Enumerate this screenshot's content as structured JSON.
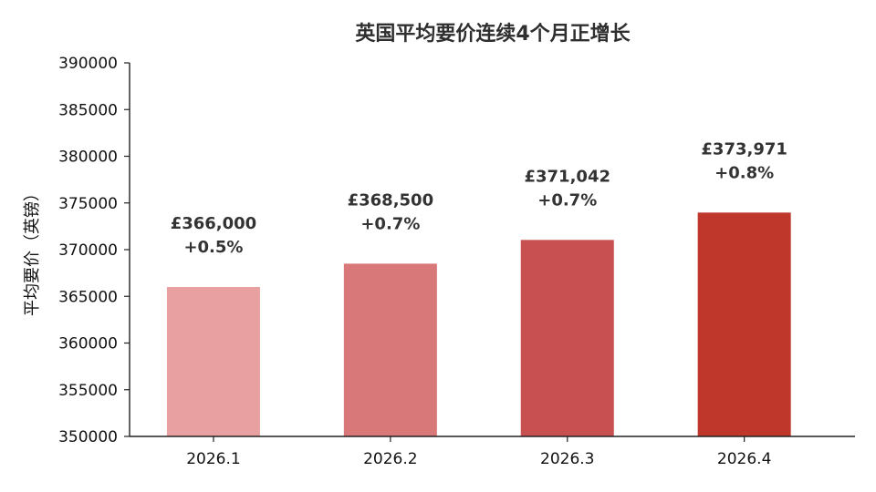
{
  "chart_data": {
    "type": "bar",
    "title": "英国平均要价连续4个月正增长",
    "xlabel": "",
    "ylabel": "平均要价（英镑）",
    "categories": [
      "2026.1",
      "2026.2",
      "2026.3",
      "2026.4"
    ],
    "values": [
      366000,
      368500,
      371042,
      373971
    ],
    "value_labels": [
      "£366,000",
      "£368,500",
      "£371,042",
      "£373,971"
    ],
    "change_labels": [
      "+0.5%",
      "+0.7%",
      "+0.7%",
      "+0.8%"
    ],
    "colors": [
      "#e8a0a0",
      "#d97878",
      "#c85050",
      "#bf362b"
    ],
    "ylim": [
      350000,
      390000
    ],
    "yticks": [
      350000,
      355000,
      360000,
      365000,
      370000,
      375000,
      380000,
      385000,
      390000
    ],
    "ytick_labels": [
      "350000",
      "355000",
      "360000",
      "365000",
      "370000",
      "375000",
      "380000",
      "385000",
      "390000"
    ],
    "grid": false,
    "legend": "none"
  }
}
